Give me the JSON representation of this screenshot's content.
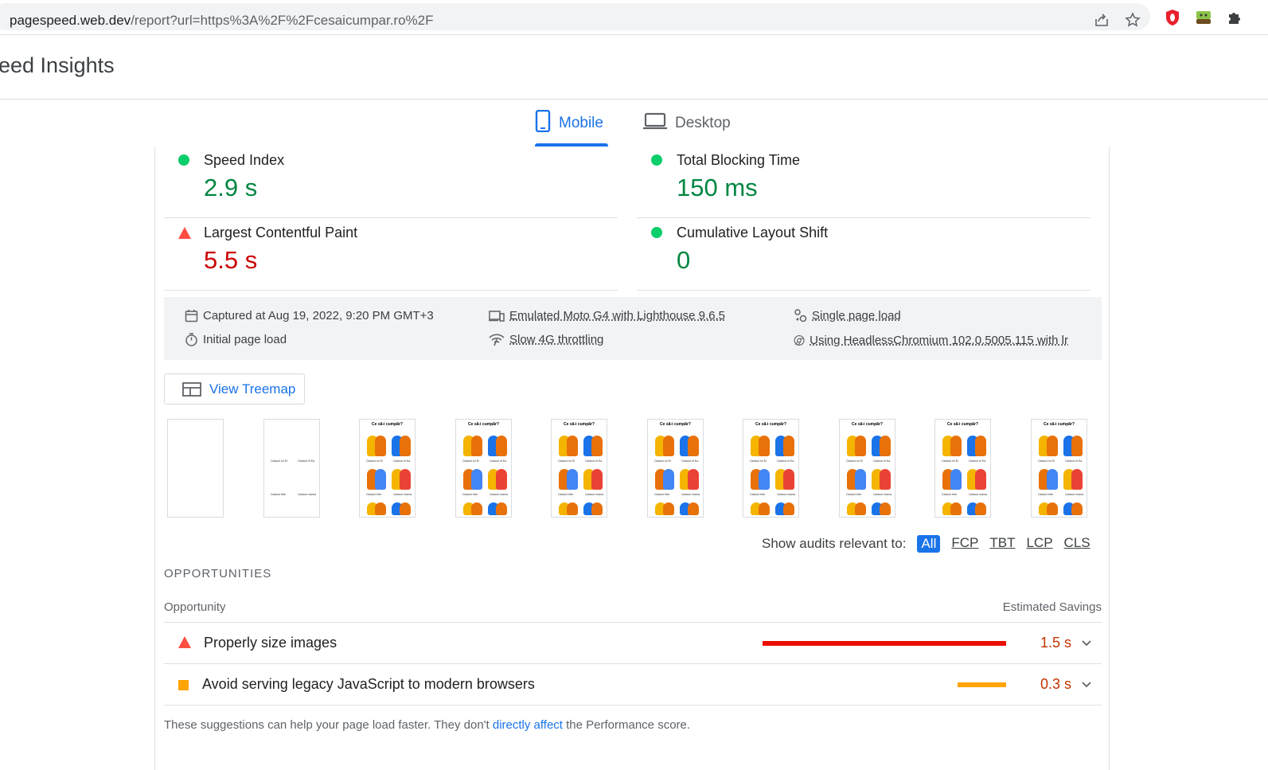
{
  "browser": {
    "url_host": "pagespeed.web.dev",
    "url_path": "/report?url=https%3A%2F%2Fcesaicumpar.ro%2F",
    "icons": [
      "share-icon",
      "star-icon",
      "opera-extension-icon",
      "bucket-extension-icon",
      "puzzle-extension-icon"
    ]
  },
  "app": {
    "title": "eed Insights"
  },
  "tabs": [
    {
      "label": "Mobile",
      "active": true
    },
    {
      "label": "Desktop",
      "active": false
    }
  ],
  "metrics": [
    {
      "title": "Speed Index",
      "value": "2.9 s",
      "status": "pass"
    },
    {
      "title": "Total Blocking Time",
      "value": "150 ms",
      "status": "pass"
    },
    {
      "title": "Largest Contentful Paint",
      "value": "5.5 s",
      "status": "fail"
    },
    {
      "title": "Cumulative Layout Shift",
      "value": "0",
      "status": "pass"
    }
  ],
  "info": {
    "captured": "Captured at Aug 19, 2022, 9:20 PM GMT+3",
    "initial_load": "Initial page load",
    "device": "Emulated Moto G4 with Lighthouse 9.6.5",
    "throttling": "Slow 4G throttling",
    "single_page": "Single page load",
    "browser": "Using HeadlessChromium 102.0.5005.115 with lr"
  },
  "treemap": {
    "label": "View Treemap"
  },
  "filmstrip": {
    "page_heading": "Ce să-i cumpăr?",
    "labels": [
      "Cadouri lui El",
      "Cadouri ei Ea",
      "Cadouri fete",
      "Cadouri mama"
    ]
  },
  "filter": {
    "label": "Show audits relevant to:",
    "options": [
      "All",
      "FCP",
      "TBT",
      "LCP",
      "CLS"
    ]
  },
  "opportunities": {
    "section_title": "OPPORTUNITIES",
    "col_left": "Opportunity",
    "col_right": "Estimated Savings",
    "items": [
      {
        "label": "Properly size images",
        "savings": "1.5 s",
        "severity": "fail",
        "bar_fraction": 1.0
      },
      {
        "label": "Avoid serving legacy JavaScript to modern browsers",
        "savings": "0.3 s",
        "severity": "average",
        "bar_fraction": 0.2
      }
    ]
  },
  "footnote": {
    "before": "These suggestions can help your page load faster. They don't ",
    "link": "directly affect",
    "after": " the Performance score."
  },
  "colors": {
    "accent": "#1a73e8",
    "pass": "#0cce6b",
    "fail": "#ff4e42",
    "average": "#ffa400"
  }
}
